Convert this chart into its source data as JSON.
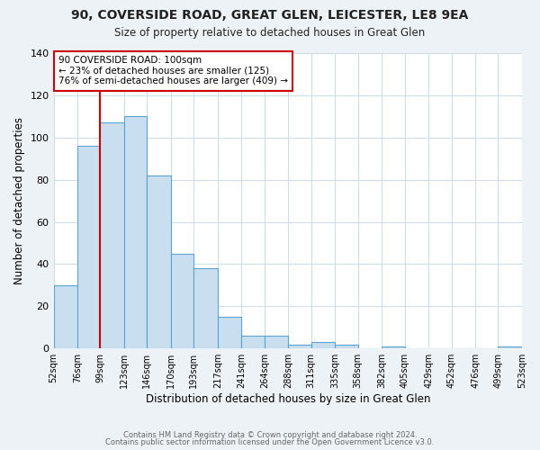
{
  "title_line1": "90, COVERSIDE ROAD, GREAT GLEN, LEICESTER, LE8 9EA",
  "title_line2": "Size of property relative to detached houses in Great Glen",
  "xlabel": "Distribution of detached houses by size in Great Glen",
  "ylabel": "Number of detached properties",
  "bar_edges": [
    52,
    76,
    99,
    123,
    146,
    170,
    193,
    217,
    241,
    264,
    288,
    311,
    335,
    358,
    382,
    405,
    429,
    452,
    476,
    499,
    523
  ],
  "bar_heights": [
    30,
    96,
    107,
    110,
    82,
    45,
    38,
    15,
    6,
    6,
    2,
    3,
    2,
    0,
    1,
    0,
    0,
    0,
    0,
    1
  ],
  "bar_color": "#c9dff0",
  "bar_edge_color": "#5ba3d0",
  "ylim": [
    0,
    140
  ],
  "yticks": [
    0,
    20,
    40,
    60,
    80,
    100,
    120,
    140
  ],
  "red_line_x": 99,
  "annotation_title": "90 COVERSIDE ROAD: 100sqm",
  "annotation_line2": "← 23% of detached houses are smaller (125)",
  "annotation_line3": "76% of semi-detached houses are larger (409) →",
  "annotation_box_color": "#ffffff",
  "annotation_box_edge_color": "#cc0000",
  "red_line_color": "#cc0000",
  "footer_line1": "Contains HM Land Registry data © Crown copyright and database right 2024.",
  "footer_line2": "Contains public sector information licensed under the Open Government Licence v3.0.",
  "fig_background_color": "#edf2f7",
  "plot_background_color": "#ffffff",
  "grid_color": "#d0dce8"
}
